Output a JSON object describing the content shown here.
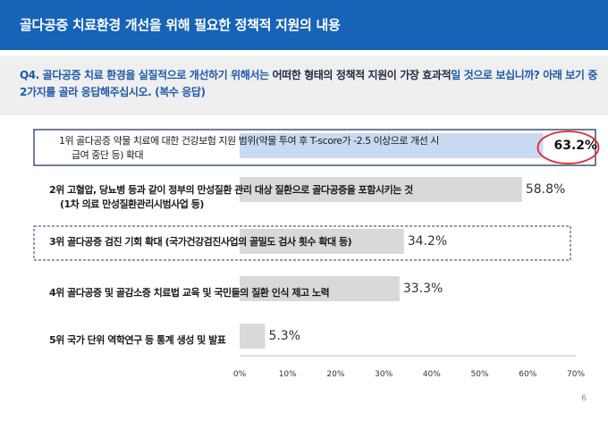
{
  "header": {
    "title": "골다공증 치료환경 개선을 위해 필요한 정책적 지원의 내용"
  },
  "question": {
    "prefix": "Q4. 골다공증 치료 환경을 실질적으로 개선하기 위해서는 ",
    "emphasis": "어떠한 형태의 정책적 지원이 가장 효과적",
    "suffix": "일 것으로 보십니까? 아래 보기 중 2가지를 골라 응답해주십시오. (복수 응답)"
  },
  "colors": {
    "header": "#1763b8",
    "highlight_bar": "#c9d9f1",
    "bar": "#d9d9d9",
    "circle": "#e2262e",
    "box_border": "#1f3864"
  },
  "chart_data": {
    "type": "bar",
    "orientation": "horizontal",
    "categories": [
      "1위 골다공증 약물 치료에 대한 건강보험 지원 범위(약물 투여 후 T-score가 -2.5 이상으로 개선 시 급여 중단 등) 확대",
      "2위 고혈압, 당뇨병 등과 같이 정부의 만성질환 관리 대상 질환으로 골다공증을 포함시키는 것 (1차 의료 만성질환관리시범사업 등)",
      "3위 골다공증 검진 기회 확대 (국가건강검진사업의 골밀도 검사 횟수 확대 등)",
      "4위 골다공증 및 골감소증 치료법 교육 및 국민들의 질환 인식 제고 노력",
      "5위 국가 단위 역학연구 등 통계 생성 및 발표"
    ],
    "label_lines": [
      [
        "1위 골다공증 약물 치료에 대한 건강보험 지원 범위(약물 투여 후 T-score가 -2.5 이상으로 개선 시",
        "급여 중단 등) 확대"
      ],
      [
        "2위 고혈압, 당뇨병 등과 같이 정부의 만성질환 관리 대상 질환으로 골다공증을 포함시키는 것",
        "(1차 의료 만성질환관리시범사업 등)"
      ],
      [
        "3위  골다공증 검진 기회 확대 (국가건강검진사업의 골밀도 검사 횟수 확대 등)"
      ],
      [
        "4위 골다공증 및 골감소증 치료법 교육 및 국민들의 질환 인식 제고 노력"
      ],
      [
        "5위 국가 단위 역학연구 등 통계 생성 및 발표"
      ]
    ],
    "values": [
      63.2,
      58.8,
      34.2,
      33.3,
      5.3
    ],
    "value_labels": [
      "63.2%",
      "58.8%",
      "34.2%",
      "33.3%",
      "5.3%"
    ],
    "xlim": [
      0,
      70
    ],
    "ticks": [
      0,
      10,
      20,
      30,
      40,
      50,
      60,
      70
    ],
    "tick_labels": [
      "0%",
      "10%",
      "20%",
      "30%",
      "40%",
      "50%",
      "60%",
      "70%"
    ],
    "grid": false,
    "legend": "none"
  },
  "page_number": "6"
}
